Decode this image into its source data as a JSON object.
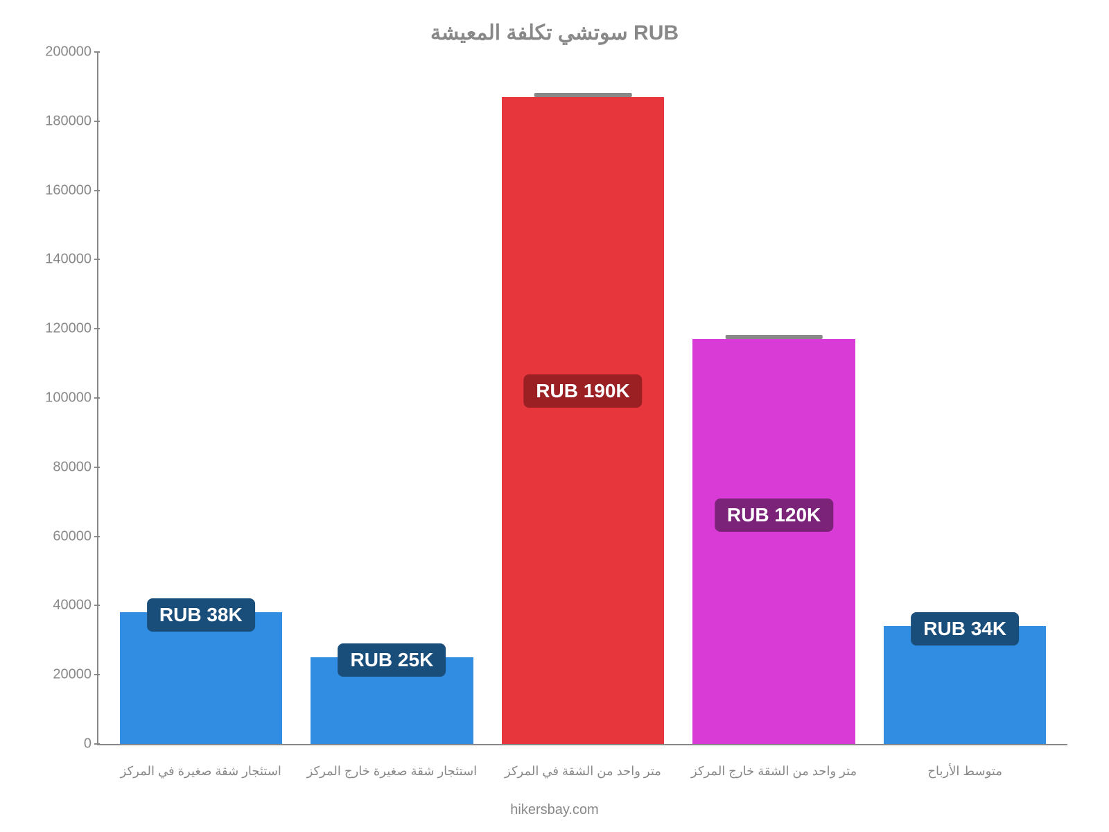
{
  "chart": {
    "type": "bar",
    "title": "سوتشي تكلفة المعيشة RUB",
    "title_color": "#888888",
    "title_fontsize": 30,
    "background_color": "#ffffff",
    "axis_color": "#888888",
    "label_color": "#888888",
    "label_fontsize": 20,
    "x_label_fontsize": 18,
    "ylim": [
      0,
      200000
    ],
    "ytick_step": 20000,
    "y_ticks": [
      {
        "value": 0,
        "label": "0"
      },
      {
        "value": 20000,
        "label": "20000"
      },
      {
        "value": 40000,
        "label": "40000"
      },
      {
        "value": 60000,
        "label": "60000"
      },
      {
        "value": 80000,
        "label": "80000"
      },
      {
        "value": 100000,
        "label": "100000"
      },
      {
        "value": 120000,
        "label": "120000"
      },
      {
        "value": 140000,
        "label": "140000"
      },
      {
        "value": 160000,
        "label": "160000"
      },
      {
        "value": 180000,
        "label": "180000"
      },
      {
        "value": 200000,
        "label": "200000"
      }
    ],
    "cap_color": "#888888",
    "bar_width": 0.85,
    "bars": [
      {
        "category": "استئجار شقة صغيرة في المركز",
        "value": 38000,
        "color": "#318de1",
        "pill_text": "RUB 38K",
        "pill_bg": "#1a4e7a",
        "pill_offset": -20
      },
      {
        "category": "استئجار شقة صغيرة خارج المركز",
        "value": 25000,
        "color": "#318de1",
        "pill_text": "RUB 25K",
        "pill_bg": "#1a4e7a",
        "pill_offset": -20
      },
      {
        "category": "متر واحد من الشقة في المركز",
        "value": 187000,
        "color": "#e8373c",
        "pill_text": "RUB 190K",
        "pill_bg": "#9a2024",
        "pill_offset": 400
      },
      {
        "category": "متر واحد من الشقة خارج المركز",
        "value": 117000,
        "color": "#d93bd6",
        "pill_text": "RUB 120K",
        "pill_bg": "#7a2378",
        "pill_offset": 230
      },
      {
        "category": "متوسط الأرباح",
        "value": 34000,
        "color": "#318de1",
        "pill_text": "RUB 34K",
        "pill_bg": "#1a4e7a",
        "pill_offset": -20
      }
    ],
    "credit": "hikersbay.com"
  }
}
